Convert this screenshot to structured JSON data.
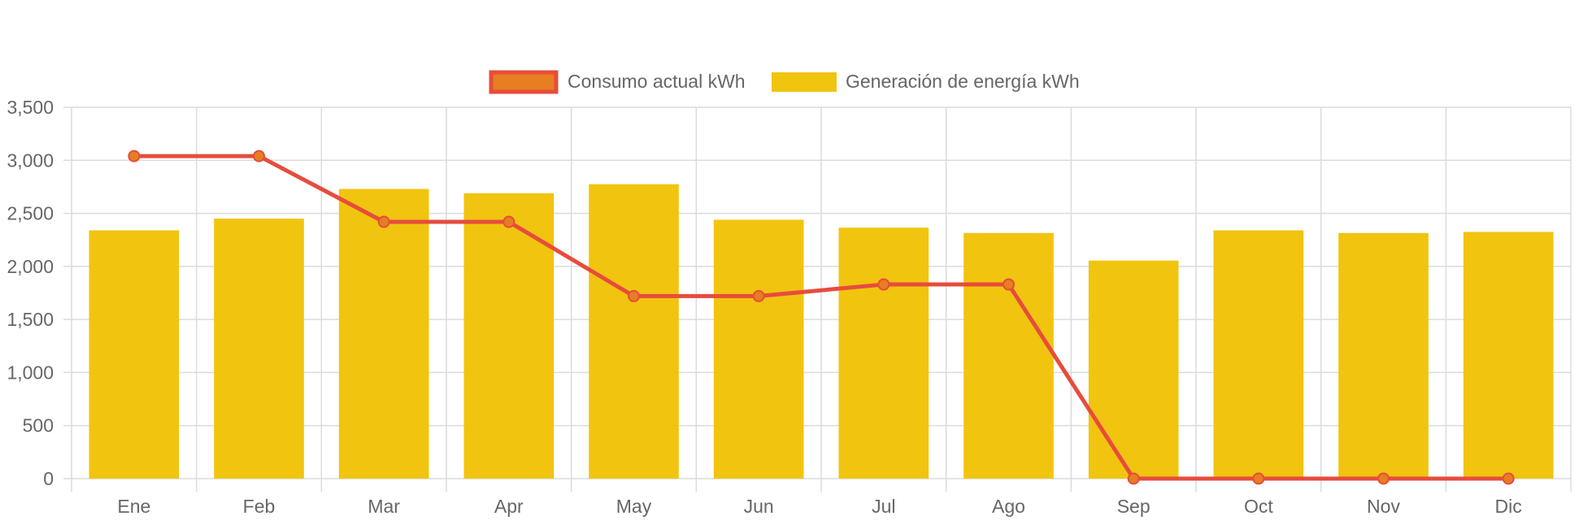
{
  "chart_data": {
    "type": "bar",
    "categories": [
      "Ene",
      "Feb",
      "Mar",
      "Apr",
      "May",
      "Jun",
      "Jul",
      "Ago",
      "Sep",
      "Oct",
      "Nov",
      "Dic"
    ],
    "series": [
      {
        "name": "Generación de energía kWh",
        "type": "bar",
        "color": "#f1c40f",
        "values": [
          2340,
          2450,
          2730,
          2690,
          2775,
          2440,
          2365,
          2315,
          2055,
          2340,
          2315,
          2325
        ]
      },
      {
        "name": "Consumo actual kWh",
        "type": "line",
        "color": "#e74c3c",
        "point_color": "#e67e22",
        "values": [
          3040,
          3040,
          2420,
          2420,
          1720,
          1720,
          1830,
          1830,
          0,
          0,
          0,
          0
        ]
      }
    ],
    "ylim": [
      0,
      3500
    ],
    "yticks": [
      "0",
      "500",
      "1,000",
      "1,500",
      "2,000",
      "2,500",
      "3,000",
      "3,500"
    ],
    "ytick_values": [
      0,
      500,
      1000,
      1500,
      2000,
      2500,
      3000,
      3500
    ],
    "grid": true,
    "legend": "top-center",
    "grid_color": "#dcdcdc",
    "axis_text_color": "#666666"
  }
}
